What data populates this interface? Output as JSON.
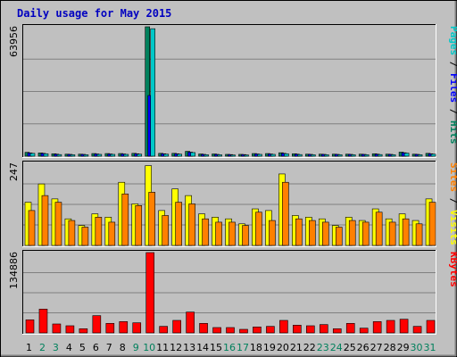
{
  "chart_data": {
    "type": "bar",
    "title": "Daily usage for May 2015",
    "days": [
      "1",
      "2",
      "3",
      "4",
      "5",
      "6",
      "7",
      "8",
      "9",
      "10",
      "11",
      "12",
      "13",
      "14",
      "15",
      "16",
      "17",
      "18",
      "19",
      "20",
      "21",
      "22",
      "23",
      "24",
      "25",
      "26",
      "27",
      "28",
      "29",
      "30",
      "31"
    ],
    "weekend_days": [
      "2",
      "3",
      "9",
      "10",
      "16",
      "17",
      "23",
      "24",
      "30",
      "31"
    ],
    "colors": {
      "hits": "#00805c",
      "files": "#0000ff",
      "pages": "#00c8c8",
      "visits": "#ffff00",
      "sites": "#ff8000",
      "kbytes": "#ff0000",
      "weekday_label": "#000000",
      "weekend_label": "#00805c"
    },
    "panels": [
      {
        "name": "hits",
        "max_label": "63956",
        "ymax": 63956,
        "side_label": [
          {
            "text": "Pages",
            "color": "#00c8c8"
          },
          {
            "text": " / ",
            "color": "#000000"
          },
          {
            "text": "Files",
            "color": "#0000ff"
          },
          {
            "text": " / ",
            "color": "#000000"
          },
          {
            "text": "Hits",
            "color": "#00805c"
          }
        ],
        "series": [
          {
            "name": "Hits",
            "color": "#00805c",
            "values": [
              1900,
              1600,
              1200,
              1000,
              1000,
              1300,
              1300,
              1300,
              1400,
              63956,
              1400,
              1400,
              2400,
              1100,
              1100,
              900,
              900,
              1300,
              1300,
              1700,
              1200,
              1000,
              1000,
              1000,
              1000,
              1000,
              1200,
              1000,
              2000,
              1000,
              1400
            ]
          },
          {
            "name": "Files",
            "color": "#0000ff",
            "values": [
              1600,
              1400,
              1000,
              900,
              900,
              1100,
              1100,
              1100,
              1200,
              30000,
              1200,
              1200,
              2000,
              900,
              900,
              800,
              800,
              1100,
              1100,
              1400,
              1000,
              900,
              900,
              900,
              900,
              900,
              1000,
              900,
              1700,
              900,
              1200
            ]
          },
          {
            "name": "Pages",
            "color": "#00c8c8",
            "values": [
              1400,
              1200,
              800,
              700,
              700,
              900,
              900,
              900,
              1000,
              63000,
              1000,
              1000,
              1800,
              700,
              700,
              600,
              600,
              900,
              900,
              1200,
              800,
              700,
              700,
              700,
              700,
              700,
              800,
              700,
              1500,
              700,
              1000
            ]
          }
        ]
      },
      {
        "name": "visits",
        "max_label": "247",
        "ymax": 247,
        "side_label": [
          {
            "text": "Sites",
            "color": "#ff8000"
          },
          {
            "text": " / ",
            "color": "#000000"
          },
          {
            "text": "Visits",
            "color": "#ffff00"
          }
        ],
        "series": [
          {
            "name": "Visits",
            "color": "#ffff00",
            "values": [
              130,
              185,
              140,
              80,
              60,
              95,
              85,
              190,
              125,
              240,
              105,
              170,
              150,
              95,
              85,
              80,
              65,
              110,
              105,
              215,
              90,
              85,
              80,
              60,
              85,
              75,
              110,
              80,
              95,
              75,
              140
            ]
          },
          {
            "name": "Sites",
            "color": "#ff8000",
            "values": [
              105,
              150,
              130,
              75,
              55,
              85,
              70,
              155,
              120,
              160,
              90,
              130,
              125,
              80,
              70,
              70,
              60,
              100,
              75,
              190,
              80,
              75,
              70,
              55,
              75,
              70,
              100,
              70,
              80,
              65,
              130
            ]
          }
        ]
      },
      {
        "name": "kbytes",
        "max_label": "134886",
        "ymax": 134886,
        "side_label": [
          {
            "text": "KBytes",
            "color": "#ff0000"
          }
        ],
        "series": [
          {
            "name": "KBytes",
            "color": "#ff0000",
            "values": [
              22000,
              40000,
              15000,
              12000,
              7000,
              29000,
              16000,
              19000,
              17000,
              134886,
              11000,
              21000,
              35000,
              16000,
              9000,
              9000,
              6000,
              10000,
              11000,
              21000,
              13000,
              12000,
              14000,
              7000,
              16000,
              8000,
              19000,
              21000,
              23000,
              11000,
              21000
            ]
          }
        ]
      }
    ]
  }
}
